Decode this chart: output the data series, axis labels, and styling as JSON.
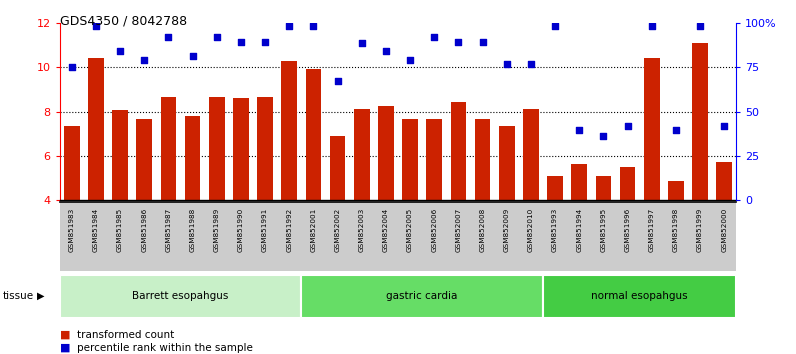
{
  "title": "GDS4350 / 8042788",
  "samples": [
    "GSM851983",
    "GSM851984",
    "GSM851985",
    "GSM851986",
    "GSM851987",
    "GSM851988",
    "GSM851989",
    "GSM851990",
    "GSM851991",
    "GSM851992",
    "GSM852001",
    "GSM852002",
    "GSM852003",
    "GSM852004",
    "GSM852005",
    "GSM852006",
    "GSM852007",
    "GSM852008",
    "GSM852009",
    "GSM852010",
    "GSM851993",
    "GSM851994",
    "GSM851995",
    "GSM851996",
    "GSM851997",
    "GSM851998",
    "GSM851999",
    "GSM852000"
  ],
  "bar_values": [
    7.35,
    10.4,
    8.05,
    7.65,
    8.65,
    7.8,
    8.65,
    8.6,
    8.65,
    10.3,
    9.9,
    6.9,
    8.1,
    8.25,
    7.65,
    7.65,
    8.45,
    7.65,
    7.35,
    8.1,
    5.1,
    5.65,
    5.1,
    5.5,
    10.4,
    4.85,
    11.1,
    5.7
  ],
  "percentile_values": [
    10.0,
    11.85,
    10.75,
    10.35,
    11.35,
    10.5,
    11.35,
    11.15,
    11.15,
    11.85,
    11.85,
    9.4,
    11.1,
    10.75,
    10.35,
    11.35,
    11.15,
    11.15,
    10.15,
    10.15,
    11.85,
    7.15,
    6.9,
    7.35,
    11.85,
    7.15,
    11.85,
    7.35
  ],
  "groups": [
    {
      "label": "Barrett esopahgus",
      "start": 0,
      "end": 10,
      "color": "#c8f0c8"
    },
    {
      "label": "gastric cardia",
      "start": 10,
      "end": 20,
      "color": "#66dd66"
    },
    {
      "label": "normal esopahgus",
      "start": 20,
      "end": 28,
      "color": "#44cc44"
    }
  ],
  "ylim_left": [
    4,
    12
  ],
  "ylim_right": [
    0,
    100
  ],
  "yticks_left": [
    4,
    6,
    8,
    10,
    12
  ],
  "yticks_right": [
    0,
    25,
    50,
    75,
    100
  ],
  "bar_color": "#cc2200",
  "dot_color": "#0000cc",
  "tick_label_bg": "#cccccc"
}
